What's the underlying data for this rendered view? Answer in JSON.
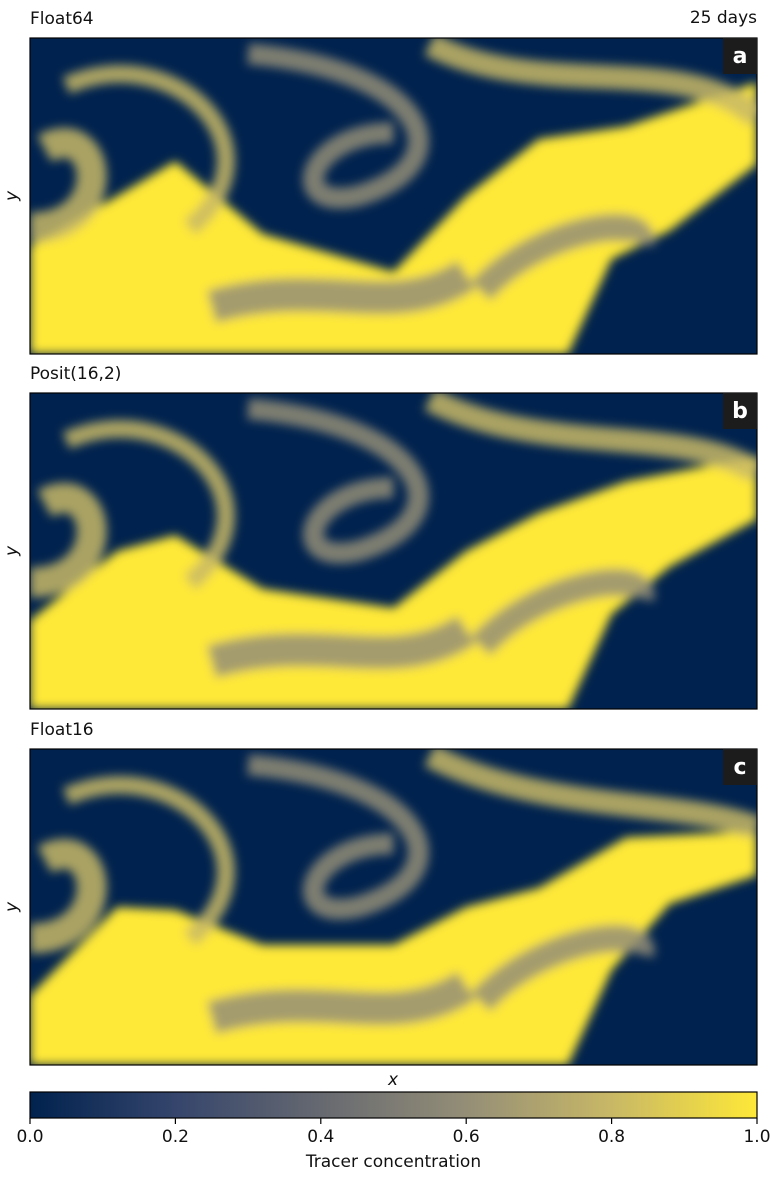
{
  "chart_data": {
    "type": "heatmap",
    "annotation": "25 days",
    "xlabel": "x",
    "ylabel": "y",
    "panels": [
      {
        "title": "Float64",
        "label": "a"
      },
      {
        "title": "Posit(16,2)",
        "label": "b"
      },
      {
        "title": "Float16",
        "label": "c"
      }
    ],
    "colorbar": {
      "label": "Tracer concentration",
      "lim": [
        0,
        1
      ],
      "ticks": [
        {
          "value": 0,
          "label": "0.0"
        },
        0.2,
        0.4,
        0.6,
        0.8,
        {
          "value": 1,
          "label": "1.0"
        }
      ],
      "colors": [
        "#00224e",
        "#35456c",
        "#666970",
        "#948e77",
        "#c8b866",
        "#fee838"
      ]
    }
  }
}
